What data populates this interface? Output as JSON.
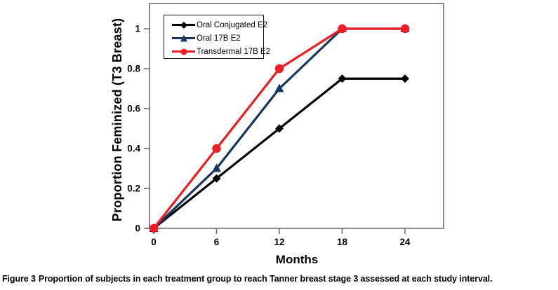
{
  "figure": {
    "caption_label": "Figure 3",
    "caption_text": "Proportion of subjects in each treatment group to reach Tanner breast stage 3 assessed at each study interval."
  },
  "chart_data": {
    "type": "line",
    "title": "",
    "xlabel": "Months",
    "ylabel": "Proportion Feminized (T3 Breast)",
    "x": [
      0,
      6,
      12,
      18,
      24
    ],
    "xtick_labels": [
      "0",
      "6",
      "12",
      "18",
      "24"
    ],
    "yticks": [
      0,
      0.2,
      0.4,
      0.6,
      0.8,
      1
    ],
    "ytick_labels": [
      "0",
      "0.2",
      "0.4",
      "0.6",
      "0.8",
      "1"
    ],
    "xlim": [
      0,
      28
    ],
    "ylim": [
      0,
      1.13
    ],
    "grid": false,
    "legend_position": "top-left-inside",
    "axis_color": "#6e6e6e",
    "text_color": "#000000",
    "series": [
      {
        "name": "Oral Conjugated E2",
        "marker": "diamond",
        "color": "#000000",
        "values": [
          0,
          0.25,
          0.5,
          0.75,
          0.75
        ]
      },
      {
        "name": "Oral 17B E2",
        "marker": "triangle",
        "color": "#17375E",
        "values": [
          0,
          0.3,
          0.7,
          1,
          1
        ]
      },
      {
        "name": "Transdermal 17B E2",
        "marker": "circle",
        "color": "#ED1C24",
        "values": [
          0,
          0.4,
          0.8,
          1,
          1
        ]
      }
    ]
  }
}
